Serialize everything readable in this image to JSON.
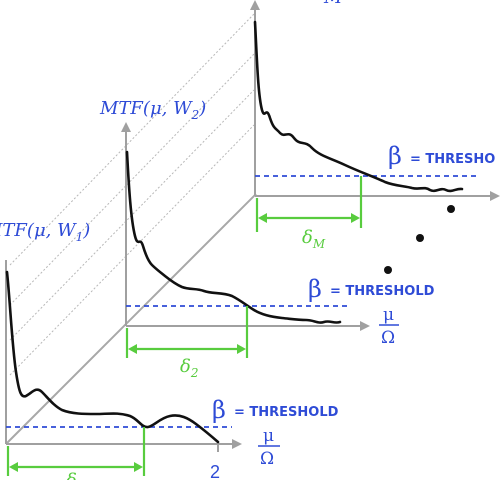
{
  "panels": [
    {
      "id": "front",
      "title": "MTF(μ, W",
      "sub": "1",
      "delta": "δ",
      "delta_sub": ""
    },
    {
      "id": "middle",
      "title": "MTF(μ, W",
      "sub": "2",
      "delta": "δ",
      "delta_sub": "2"
    },
    {
      "id": "back",
      "title": "",
      "sub": "M",
      "delta": "δ",
      "delta_sub": "M"
    }
  ],
  "threshold": {
    "beta": "β",
    "label": "= THRESHOLD",
    "label_clipped": "= THRESHO"
  },
  "axis": {
    "x_num": "μ",
    "x_den": "Ω",
    "tick_2": "2"
  },
  "colors": {
    "text": "#2e4bd6",
    "delta": "#58cc3e",
    "axis": "#a0a0a0",
    "curve": "#111111"
  }
}
